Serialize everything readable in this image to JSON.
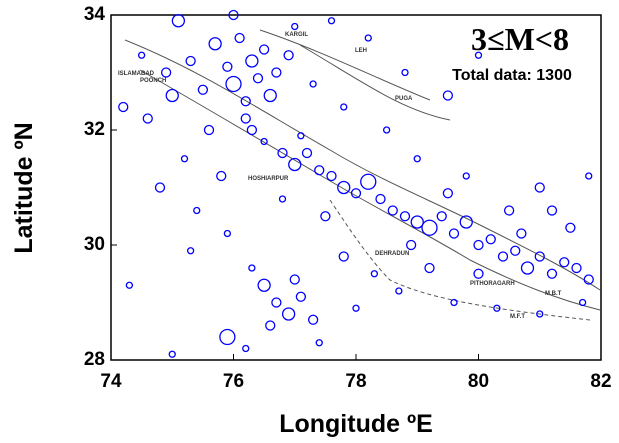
{
  "chart_data": {
    "type": "scatter",
    "title": "3≤M<8",
    "subtitle": "Total data: 1300",
    "x_label": "Longitude ºE",
    "y_label": "Latitude ºN",
    "color": "#0000ff",
    "xlim": [
      74,
      82
    ],
    "ylim": [
      28,
      34
    ],
    "xticks": [
      74,
      76,
      78,
      80,
      82
    ],
    "yticks": [
      28,
      30,
      32,
      34
    ],
    "annotations": [
      "KARGIL",
      "LEH",
      "ISLAMABAD",
      "POONCH",
      "PUGA",
      "HOSHIARPUR",
      "DEHRADUN",
      "PITHORAGARH",
      "M.F.T",
      "M.B.T"
    ],
    "x": [
      74.2,
      74.5,
      74.9,
      75.1,
      75.3,
      75.5,
      75.7,
      75.9,
      76.0,
      76.1,
      76.2,
      76.3,
      76.4,
      76.5,
      76.6,
      76.7,
      76.9,
      75.6,
      75.2,
      74.8,
      75.4,
      75.8,
      76.3,
      76.5,
      76.8,
      77.0,
      77.2,
      77.4,
      77.1,
      77.6,
      77.8,
      78.0,
      78.2,
      78.4,
      78.6,
      78.8,
      79.0,
      79.2,
      79.4,
      79.6,
      79.8,
      80.0,
      80.2,
      80.4,
      80.6,
      80.8,
      81.0,
      81.2,
      81.4,
      81.6,
      81.8,
      81.5,
      81.8,
      81.0,
      80.5,
      79.8,
      79.0,
      78.5,
      79.5,
      80.0,
      78.8,
      77.8,
      77.0,
      76.0,
      76.5,
      76.7,
      76.9,
      77.1,
      76.6,
      77.3,
      76.3,
      77.0,
      75.9,
      76.2,
      77.4,
      75.0,
      74.3,
      75.3,
      77.8,
      78.3,
      78.0,
      78.7,
      79.2,
      79.6,
      80.3,
      81.0,
      81.7,
      80.0,
      79.5,
      78.9,
      77.5,
      76.8,
      75.9,
      74.6,
      75.0,
      76.2,
      77.3,
      78.2,
      77.6,
      81.2,
      80.7
    ],
    "y": [
      32.4,
      33.3,
      33.0,
      33.9,
      33.2,
      32.7,
      33.5,
      33.1,
      32.8,
      33.6,
      32.5,
      33.2,
      32.9,
      33.4,
      32.6,
      33.0,
      33.3,
      32.0,
      31.5,
      31.0,
      30.6,
      31.2,
      32.0,
      31.8,
      31.6,
      31.4,
      31.6,
      31.3,
      31.9,
      31.2,
      31.0,
      30.9,
      31.1,
      30.8,
      30.6,
      30.5,
      30.4,
      30.3,
      30.5,
      30.2,
      30.4,
      30.0,
      30.1,
      29.8,
      29.9,
      29.6,
      29.8,
      29.5,
      29.7,
      29.6,
      29.4,
      30.3,
      31.2,
      31.0,
      30.6,
      31.2,
      31.5,
      32.0,
      32.6,
      33.3,
      33.0,
      32.4,
      33.8,
      34.0,
      29.3,
      29.0,
      28.8,
      29.1,
      28.6,
      28.7,
      29.6,
      29.4,
      28.4,
      28.2,
      28.3,
      28.1,
      29.3,
      29.9,
      29.8,
      29.5,
      28.9,
      29.2,
      29.6,
      29.0,
      28.9,
      28.8,
      29.0,
      29.5,
      30.9,
      30.0,
      30.5,
      30.8,
      30.2,
      32.2,
      32.6,
      32.2,
      32.8,
      33.6,
      33.9,
      30.6,
      30.2
    ],
    "sizes": [
      4,
      3.5,
      4,
      4.5,
      4,
      4,
      4.5,
      4,
      5,
      4,
      4,
      4.5,
      4,
      4,
      4.5,
      4,
      4,
      4,
      3.5,
      4,
      3.5,
      4,
      4,
      3.5,
      4,
      4.5,
      4,
      4,
      3.5,
      4,
      4.5,
      4,
      5,
      4,
      4,
      4,
      4.5,
      5,
      4,
      4,
      4.5,
      4,
      4,
      4,
      4,
      4.5,
      4,
      4,
      4,
      4,
      4,
      4,
      3.5,
      4,
      4,
      3.5,
      3.5,
      3.5,
      4,
      3.5,
      3.5,
      3.5,
      3.5,
      4,
      4.5,
      4,
      4.5,
      4,
      4,
      4,
      3.5,
      4,
      5,
      3.5,
      3.5,
      3.5,
      3.5,
      3.5,
      4,
      3.5,
      3.5,
      3.5,
      4,
      3.5,
      3.5,
      3.5,
      3.5,
      4,
      4,
      4,
      4,
      3.5,
      3.5,
      4,
      4.5,
      4,
      3.5,
      3.5,
      3.5,
      4,
      4
    ]
  }
}
